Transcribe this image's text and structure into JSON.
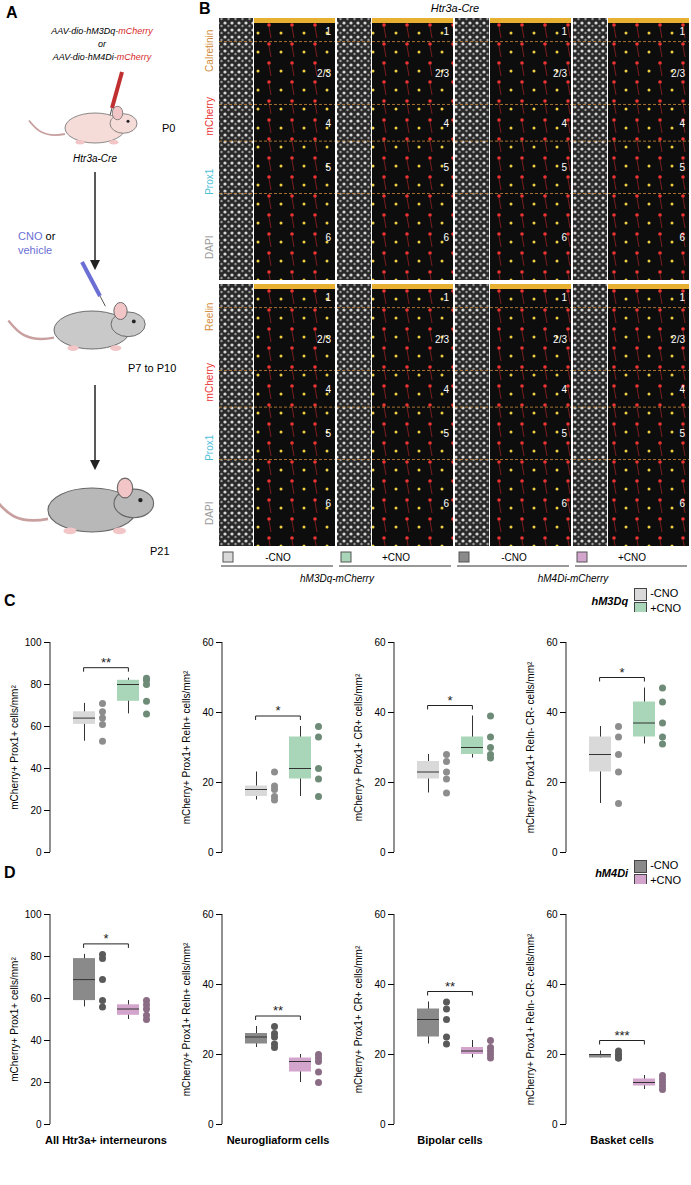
{
  "panel_a": {
    "label": "A",
    "vectors": [
      "AAV-dio-hM3Dq-mCherry",
      "or",
      "AAV-dio-hM4Di-mCherry"
    ],
    "mouse_line": "Htr3a-Cre",
    "stages": [
      "P0",
      "P7 to P10",
      "P21"
    ],
    "treatment": [
      "CNO",
      "or",
      "vehicle"
    ]
  },
  "panel_b": {
    "label": "B",
    "title": "Htr3a-Cre",
    "rows": [
      {
        "channels": [
          "Calretinin",
          "mCherry",
          "Prox1",
          "DAPI"
        ]
      },
      {
        "channels": [
          "Reelin",
          "mCherry",
          "Prox1",
          "DAPI"
        ]
      }
    ],
    "layers": [
      "1",
      "2/3",
      "4",
      "5",
      "6"
    ],
    "columns": [
      "-CNO",
      "+CNO",
      "-CNO",
      "+CNO"
    ],
    "groups": [
      "hM3Dq-mCherry",
      "hM4Di-mCherry"
    ]
  },
  "row_labels": [
    "C",
    "D"
  ],
  "chart_data": [
    {
      "type": "box",
      "ylabel": "mCherry+ Prox1+ cells/mm²",
      "ylim": [
        0,
        100
      ],
      "yticks": [
        0,
        20,
        40,
        60,
        80,
        100
      ],
      "tick_labels": "y",
      "annotations": [
        "**"
      ],
      "series": [
        {
          "name": "-CNO",
          "color": "#d9d9d9",
          "values": [
            71,
            67,
            64,
            61,
            53
          ]
        },
        {
          "name": "+CNO",
          "color": "#a9d6b8",
          "values": [
            83,
            82,
            80,
            72,
            66
          ]
        }
      ]
    },
    {
      "type": "box",
      "ylabel": "mCherry+ Prox1+ Reln+ cells/mm²",
      "ylim": [
        0,
        60
      ],
      "yticks": [
        0,
        20,
        40,
        60
      ],
      "tick_labels": "y",
      "annotations": [
        "*"
      ],
      "series": [
        {
          "name": "-CNO",
          "color": "#d9d9d9",
          "values": [
            23,
            19,
            18,
            16,
            15
          ]
        },
        {
          "name": "+CNO",
          "color": "#a9d6b8",
          "values": [
            36,
            33,
            24,
            21,
            16
          ]
        }
      ]
    },
    {
      "type": "box",
      "ylabel": "mCherry+ Prox1+ CR+ cells/mm²",
      "ylim": [
        0,
        60
      ],
      "yticks": [
        0,
        20,
        40,
        60
      ],
      "tick_labels": "y",
      "annotations": [
        "*"
      ],
      "series": [
        {
          "name": "-CNO",
          "color": "#d9d9d9",
          "values": [
            28,
            26,
            23,
            21,
            17
          ]
        },
        {
          "name": "+CNO",
          "color": "#a9d6b8",
          "values": [
            39,
            33,
            30,
            28,
            27
          ]
        }
      ]
    },
    {
      "type": "box",
      "ylabel": "mCherry+ Prox1+ Reln- CR- cells/mm²",
      "ylim": [
        0,
        60
      ],
      "yticks": [
        0,
        20,
        40,
        60
      ],
      "tick_labels": "y",
      "annotations": [
        "*"
      ],
      "legend": "top right",
      "legend_title": "hM3Dq",
      "series": [
        {
          "name": "-CNO",
          "color": "#d9d9d9",
          "values": [
            36,
            33,
            28,
            23,
            14
          ]
        },
        {
          "name": "+CNO",
          "color": "#a9d6b8",
          "values": [
            47,
            43,
            37,
            33,
            31
          ]
        }
      ]
    },
    {
      "type": "box",
      "ylabel": "mCherry+ Prox1+ cells/mm²",
      "xlabel": "All Htr3a+ interneurons",
      "ylim": [
        0,
        100
      ],
      "yticks": [
        0,
        20,
        40,
        60,
        80,
        100
      ],
      "tick_labels": "y",
      "annotations": [
        "*"
      ],
      "series": [
        {
          "name": "-CNO",
          "color": "#8a8a8a",
          "values": [
            81,
            79,
            69,
            59,
            56
          ]
        },
        {
          "name": "+CNO",
          "color": "#d4a5cc",
          "values": [
            59,
            57,
            55,
            52,
            50
          ]
        }
      ]
    },
    {
      "type": "box",
      "ylabel": "mCherry+ Prox1+ Reln+ cells/mm²",
      "xlabel": "Neurogliaform cells",
      "ylim": [
        0,
        60
      ],
      "yticks": [
        0,
        20,
        40,
        60
      ],
      "tick_labels": "y",
      "annotations": [
        "**"
      ],
      "series": [
        {
          "name": "-CNO",
          "color": "#8a8a8a",
          "values": [
            28,
            26,
            25,
            23,
            22
          ]
        },
        {
          "name": "+CNO",
          "color": "#d4a5cc",
          "values": [
            20,
            19,
            18,
            15,
            12
          ]
        }
      ]
    },
    {
      "type": "box",
      "ylabel": "mCherry+ Prox1+ CR+ cells/mm²",
      "xlabel": "Bipolar cells",
      "ylim": [
        0,
        60
      ],
      "yticks": [
        0,
        20,
        40,
        60
      ],
      "tick_labels": "y",
      "annotations": [
        "**"
      ],
      "series": [
        {
          "name": "-CNO",
          "color": "#8a8a8a",
          "values": [
            35,
            33,
            30,
            25,
            23
          ]
        },
        {
          "name": "+CNO",
          "color": "#d4a5cc",
          "values": [
            24,
            22,
            21,
            20,
            19
          ]
        }
      ]
    },
    {
      "type": "box",
      "ylabel": "mCherry+ Prox1+ Reln- CR- cells/mm²",
      "xlabel": "Basket cells",
      "ylim": [
        0,
        60
      ],
      "yticks": [
        0,
        20,
        40,
        60
      ],
      "tick_labels": "y",
      "annotations": [
        "***"
      ],
      "legend": "top right",
      "legend_title": "hM4Di",
      "series": [
        {
          "name": "-CNO",
          "color": "#8a8a8a",
          "values": [
            21,
            20,
            20,
            19,
            19
          ]
        },
        {
          "name": "+CNO",
          "color": "#d4a5cc",
          "values": [
            14,
            13,
            12,
            11,
            10
          ]
        }
      ]
    }
  ]
}
